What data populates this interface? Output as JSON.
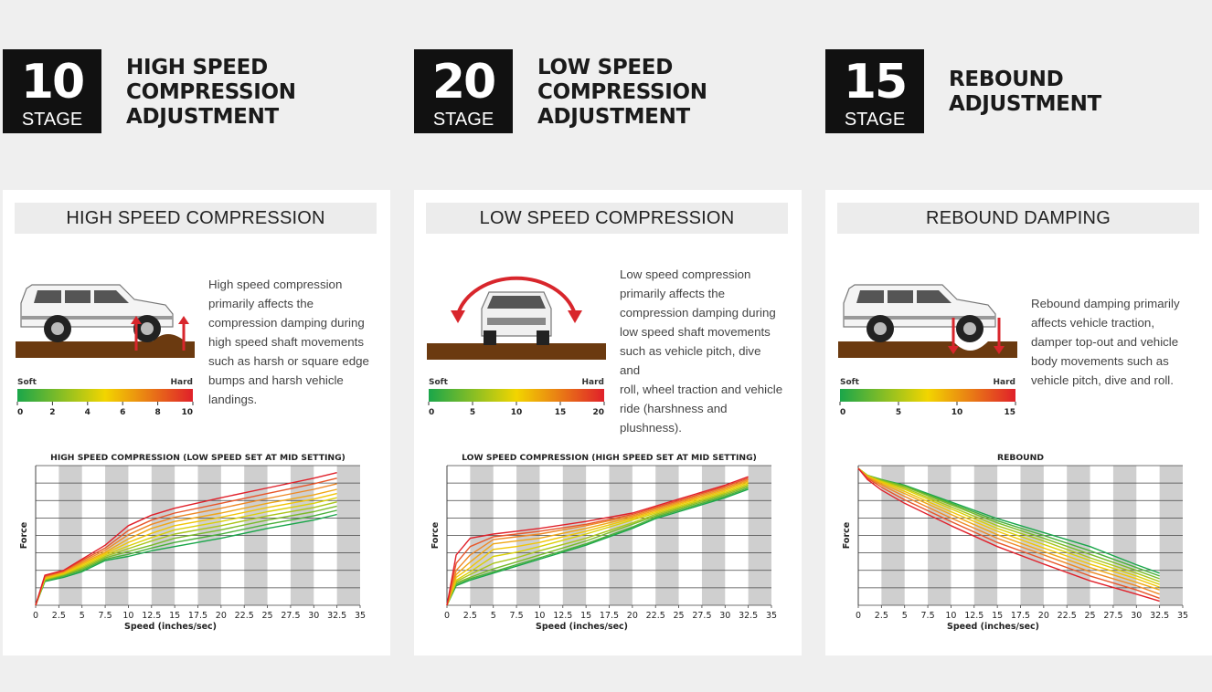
{
  "stages": [
    {
      "number": "10",
      "label": "STAGE",
      "title": [
        "HIGH SPEED",
        "COMPRESSION",
        "ADJUSTMENT"
      ]
    },
    {
      "number": "20",
      "label": "STAGE",
      "title": [
        "LOW SPEED",
        "COMPRESSION",
        "ADJUSTMENT"
      ]
    },
    {
      "number": "15",
      "label": "STAGE",
      "title": [
        "REBOUND",
        "ADJUSTMENT"
      ]
    }
  ],
  "panels": [
    {
      "header": "HIGH SPEED COMPRESSION",
      "description": [
        "High speed compression",
        "primarily affects the",
        "compression damping during",
        "high speed shaft movements",
        "such as harsh or square edge",
        "bumps and harsh vehicle",
        "landings."
      ],
      "illustration": "car-side-bump-compression",
      "scale": {
        "soft": "Soft",
        "hard": "Hard",
        "ticks": [
          "0",
          "2",
          "4",
          "6",
          "8",
          "10"
        ]
      }
    },
    {
      "header": "LOW SPEED COMPRESSION",
      "description": [
        "Low speed compression",
        "primarily affects the",
        "compression damping during",
        "low speed shaft movements",
        "such as vehicle pitch, dive and",
        "roll, wheel traction and vehicle",
        "ride (harshness and",
        "plushness)."
      ],
      "illustration": "car-front-roll",
      "scale": {
        "soft": "Soft",
        "hard": "Hard",
        "ticks": [
          "0",
          "5",
          "10",
          "15",
          "20"
        ]
      }
    },
    {
      "header": "REBOUND DAMPING",
      "description": [
        "Rebound damping primarily",
        "affects vehicle traction,",
        "damper top-out and vehicle",
        "body movements such as",
        "vehicle pitch, dive and roll."
      ],
      "illustration": "car-side-rebound",
      "scale": {
        "soft": "Soft",
        "hard": "Hard",
        "ticks": [
          "0",
          "5",
          "10",
          "15"
        ]
      }
    }
  ],
  "colors": {
    "soft": "#1aa64a",
    "mid": "#f2d500",
    "hard": "#e0202a",
    "ground": "#6b3a10",
    "arrow": "#d8262c"
  },
  "chart_data": [
    {
      "type": "line",
      "title": "HIGH SPEED COMPRESSION (LOW SPEED SET AT MID SETTING)",
      "xlabel": "Speed (inches/sec)",
      "ylabel": "Force",
      "xticks": [
        "0",
        "2.5",
        "5",
        "7.5",
        "10",
        "12.5",
        "15",
        "17.5",
        "20",
        "22.5",
        "25",
        "27.5",
        "30",
        "32.5",
        "35"
      ],
      "xlim": [
        0,
        35
      ],
      "ylim": [
        0,
        100
      ],
      "grid": true,
      "series_count": 10,
      "series": [
        {
          "x": [
            0,
            1,
            3,
            5,
            7.5,
            10,
            12.5,
            15,
            20,
            25,
            30,
            32.5
          ],
          "values": [
            0,
            17,
            20,
            24,
            32,
            35,
            39,
            42,
            48,
            55,
            61,
            65
          ]
        },
        {
          "x": [
            0,
            1,
            3,
            5,
            7.5,
            10,
            12.5,
            15,
            20,
            25,
            30,
            32.5
          ],
          "values": [
            0,
            17.5,
            21,
            25,
            33,
            36.5,
            41,
            45,
            51,
            58,
            64,
            68
          ]
        },
        {
          "x": [
            0,
            1,
            3,
            5,
            7.5,
            10,
            12.5,
            15,
            20,
            25,
            30,
            32.5
          ],
          "values": [
            0,
            18,
            21.5,
            26,
            34,
            38.5,
            43,
            48,
            54,
            61,
            67,
            71
          ]
        },
        {
          "x": [
            0,
            1,
            3,
            5,
            7.5,
            10,
            12.5,
            15,
            20,
            25,
            30,
            32.5
          ],
          "values": [
            0,
            18.5,
            22,
            27,
            35,
            40.5,
            46,
            51,
            57,
            64,
            70,
            74
          ]
        },
        {
          "x": [
            0,
            1,
            3,
            5,
            7.5,
            10,
            12.5,
            15,
            20,
            25,
            30,
            32.5
          ],
          "values": [
            0,
            19,
            22.5,
            28,
            36,
            42.5,
            48.5,
            54,
            60,
            67,
            73,
            77
          ]
        },
        {
          "x": [
            0,
            1,
            3,
            5,
            7.5,
            10,
            12.5,
            15,
            20,
            25,
            30,
            32.5
          ],
          "values": [
            0,
            19.5,
            23,
            29,
            37,
            45,
            51.5,
            57,
            63,
            70,
            76,
            80
          ]
        },
        {
          "x": [
            0,
            1,
            3,
            5,
            7.5,
            10,
            12.5,
            15,
            20,
            25,
            30,
            32.5
          ],
          "values": [
            0,
            20,
            23.5,
            30,
            38,
            47.5,
            55,
            60,
            66,
            73,
            79,
            83
          ]
        },
        {
          "x": [
            0,
            1,
            3,
            5,
            7.5,
            10,
            12.5,
            15,
            20,
            25,
            30,
            32.5
          ],
          "values": [
            0,
            20.5,
            24,
            31,
            39.5,
            50.5,
            58,
            63,
            69.5,
            76.5,
            83,
            87
          ]
        },
        {
          "x": [
            0,
            1,
            3,
            5,
            7.5,
            10,
            12.5,
            15,
            20,
            25,
            30,
            32.5
          ],
          "values": [
            0,
            21,
            24.5,
            32,
            41,
            53.5,
            61,
            66,
            73,
            80,
            87,
            91
          ]
        },
        {
          "x": [
            0,
            1,
            3,
            5,
            7.5,
            10,
            12.5,
            15,
            20,
            25,
            30,
            32.5
          ],
          "values": [
            0,
            21.5,
            25,
            33,
            43,
            57,
            64.5,
            69.5,
            77,
            84,
            91,
            95
          ]
        }
      ]
    },
    {
      "type": "line",
      "title": "LOW SPEED COMPRESSION (HIGH SPEED SET AT MID SETTING)",
      "xlabel": "Speed (inches/sec)",
      "ylabel": "Force",
      "xticks": [
        "0",
        "2.5",
        "5",
        "7.5",
        "10",
        "12.5",
        "15",
        "17.5",
        "20",
        "22.5",
        "25",
        "27.5",
        "30",
        "32.5",
        "35"
      ],
      "xlim": [
        0,
        35
      ],
      "ylim": [
        0,
        100
      ],
      "grid": true,
      "series_count": 10,
      "series": [
        {
          "x": [
            0,
            1,
            2.5,
            5,
            7.5,
            10,
            15,
            20,
            22.5,
            25,
            30,
            32.5
          ],
          "values": [
            0,
            14,
            18,
            23,
            28,
            33,
            43,
            55,
            62,
            67,
            77,
            83
          ]
        },
        {
          "x": [
            0,
            1,
            2.5,
            5,
            7.5,
            10,
            15,
            20,
            22.5,
            25,
            30,
            32.5
          ],
          "values": [
            0,
            15,
            19,
            24,
            29,
            34,
            44,
            56,
            63,
            68,
            78,
            84
          ]
        },
        {
          "x": [
            0,
            1,
            2.5,
            5,
            7.5,
            10,
            15,
            20,
            22.5,
            25,
            30,
            32.5
          ],
          "values": [
            0,
            16,
            20,
            26,
            31,
            36,
            46,
            58,
            64,
            69,
            79,
            85
          ]
        },
        {
          "x": [
            0,
            1,
            2.5,
            5,
            7.5,
            10,
            15,
            20,
            22.5,
            25,
            30,
            32.5
          ],
          "values": [
            0,
            17,
            22,
            30,
            34,
            39,
            48,
            59,
            65,
            70,
            80,
            86
          ]
        },
        {
          "x": [
            0,
            1,
            2.5,
            5,
            7.5,
            10,
            15,
            20,
            22.5,
            25,
            30,
            32.5
          ],
          "values": [
            0,
            18,
            24,
            35,
            38,
            42,
            51,
            61,
            66,
            71,
            81,
            87
          ]
        },
        {
          "x": [
            0,
            1,
            2.5,
            5,
            7.5,
            10,
            15,
            20,
            22.5,
            25,
            30,
            32.5
          ],
          "values": [
            0,
            20,
            27,
            40,
            42,
            45,
            53,
            62,
            67,
            72,
            82,
            88
          ]
        },
        {
          "x": [
            0,
            1,
            2.5,
            5,
            7.5,
            10,
            15,
            20,
            22.5,
            25,
            30,
            32.5
          ],
          "values": [
            0,
            22,
            31,
            44,
            46,
            48,
            55,
            63,
            68,
            73,
            83,
            89
          ]
        },
        {
          "x": [
            0,
            1,
            2.5,
            5,
            7.5,
            10,
            15,
            20,
            22.5,
            25,
            30,
            32.5
          ],
          "values": [
            0,
            25,
            36,
            47,
            49,
            51,
            57,
            64,
            69,
            74,
            84,
            90
          ]
        },
        {
          "x": [
            0,
            1,
            2.5,
            5,
            7.5,
            10,
            15,
            20,
            22.5,
            25,
            30,
            32.5
          ],
          "values": [
            0,
            30,
            42,
            49,
            51,
            53,
            58,
            65,
            70,
            75,
            85,
            91
          ]
        },
        {
          "x": [
            0,
            1,
            2.5,
            5,
            7.5,
            10,
            15,
            20,
            22.5,
            25,
            30,
            32.5
          ],
          "values": [
            0,
            36,
            48,
            51,
            53,
            55,
            60,
            66,
            71,
            76,
            86,
            92
          ]
        }
      ]
    },
    {
      "type": "line",
      "title": "REBOUND",
      "xlabel": "Speed (inches/sec)",
      "ylabel": "Force",
      "xticks": [
        "0",
        "2.5",
        "5",
        "7.5",
        "10",
        "12.5",
        "15",
        "17.5",
        "20",
        "22.5",
        "25",
        "27.5",
        "30",
        "32.5",
        "35"
      ],
      "xlim": [
        0,
        35
      ],
      "ylim": [
        -100,
        0
      ],
      "grid": true,
      "series_count": 10,
      "series": [
        {
          "x": [
            0,
            1,
            2.5,
            5,
            10,
            15,
            20,
            25,
            30,
            32.5
          ],
          "values": [
            -2,
            -7,
            -10,
            -14,
            -26,
            -38,
            -48,
            -58,
            -71,
            -77
          ]
        },
        {
          "x": [
            0,
            1,
            2.5,
            5,
            10,
            15,
            20,
            25,
            30,
            32.5
          ],
          "values": [
            -2,
            -7,
            -10,
            -14.5,
            -27,
            -39.5,
            -50,
            -61,
            -73,
            -79
          ]
        },
        {
          "x": [
            0,
            1,
            2.5,
            5,
            10,
            15,
            20,
            25,
            30,
            32.5
          ],
          "values": [
            -2,
            -7,
            -10.5,
            -15,
            -28,
            -41,
            -52,
            -63.5,
            -75,
            -81
          ]
        },
        {
          "x": [
            0,
            1,
            2.5,
            5,
            10,
            15,
            20,
            25,
            30,
            32.5
          ],
          "values": [
            -2,
            -7,
            -11,
            -16,
            -29.5,
            -43,
            -54,
            -66,
            -77,
            -83
          ]
        },
        {
          "x": [
            0,
            1,
            2.5,
            5,
            10,
            15,
            20,
            25,
            30,
            32.5
          ],
          "values": [
            -2,
            -7.5,
            -11.5,
            -17,
            -31,
            -45,
            -56.5,
            -68,
            -79,
            -85
          ]
        },
        {
          "x": [
            0,
            1,
            2.5,
            5,
            10,
            15,
            20,
            25,
            30,
            32.5
          ],
          "values": [
            -2,
            -7.5,
            -12,
            -18.5,
            -33,
            -47,
            -59,
            -70.5,
            -81,
            -87
          ]
        },
        {
          "x": [
            0,
            1,
            2.5,
            5,
            10,
            15,
            20,
            25,
            30,
            32.5
          ],
          "values": [
            -2,
            -8,
            -13,
            -20,
            -35,
            -49.5,
            -61.5,
            -73,
            -83.5,
            -89
          ]
        },
        {
          "x": [
            0,
            1,
            2.5,
            5,
            10,
            15,
            20,
            25,
            30,
            32.5
          ],
          "values": [
            -2,
            -8.5,
            -14,
            -22,
            -37.5,
            -52,
            -64,
            -76,
            -86,
            -92
          ]
        },
        {
          "x": [
            0,
            1,
            2.5,
            5,
            10,
            15,
            20,
            25,
            30,
            32.5
          ],
          "values": [
            -2,
            -9,
            -15.5,
            -24.5,
            -40,
            -55,
            -67,
            -79,
            -89,
            -95
          ]
        },
        {
          "x": [
            0,
            1,
            2.5,
            5,
            10,
            15,
            20,
            25,
            30,
            32.5
          ],
          "values": [
            -2,
            -10,
            -17.5,
            -27,
            -43,
            -58,
            -70.5,
            -82.5,
            -92,
            -97
          ]
        }
      ]
    }
  ]
}
